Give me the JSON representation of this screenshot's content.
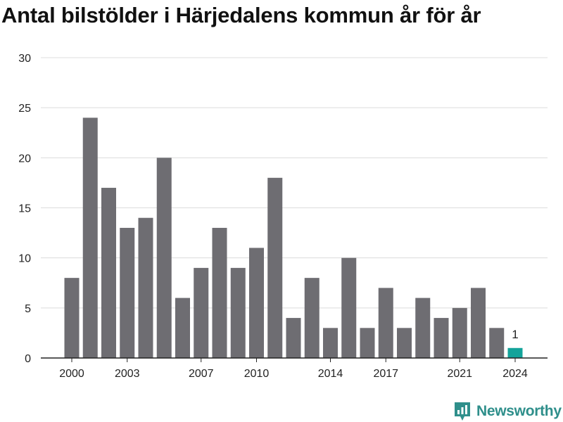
{
  "title": "Antal bilstölder i Härjedalens kommun år för år",
  "logo_text": "Newsworthy",
  "colors": {
    "bar": "#6e6d72",
    "highlight": "#13a39a",
    "grid": "#dcdcdc",
    "axis": "#222222",
    "brand": "#2f8f8b"
  },
  "chart_data": {
    "type": "bar",
    "title": "Antal bilstölder i Härjedalens kommun år för år",
    "xlabel": "",
    "ylabel": "",
    "categories": [
      2000,
      2001,
      2002,
      2003,
      2004,
      2005,
      2006,
      2007,
      2008,
      2009,
      2010,
      2011,
      2012,
      2013,
      2014,
      2015,
      2016,
      2017,
      2018,
      2019,
      2020,
      2021,
      2022,
      2023,
      2024
    ],
    "values": [
      8,
      24,
      17,
      13,
      14,
      20,
      6,
      9,
      13,
      9,
      11,
      18,
      4,
      8,
      3,
      10,
      3,
      7,
      3,
      6,
      4,
      5,
      7,
      3,
      1
    ],
    "highlight_index": 24,
    "data_labels": [
      {
        "category": 2024,
        "text": "1"
      }
    ],
    "x_tick_labels": [
      "2000",
      "2003",
      "2007",
      "2010",
      "2014",
      "2017",
      "2021",
      "2024"
    ],
    "y_ticks": [
      0,
      5,
      10,
      15,
      20,
      25,
      30
    ],
    "ylim": [
      0,
      30
    ],
    "grid": true,
    "legend": "none"
  }
}
